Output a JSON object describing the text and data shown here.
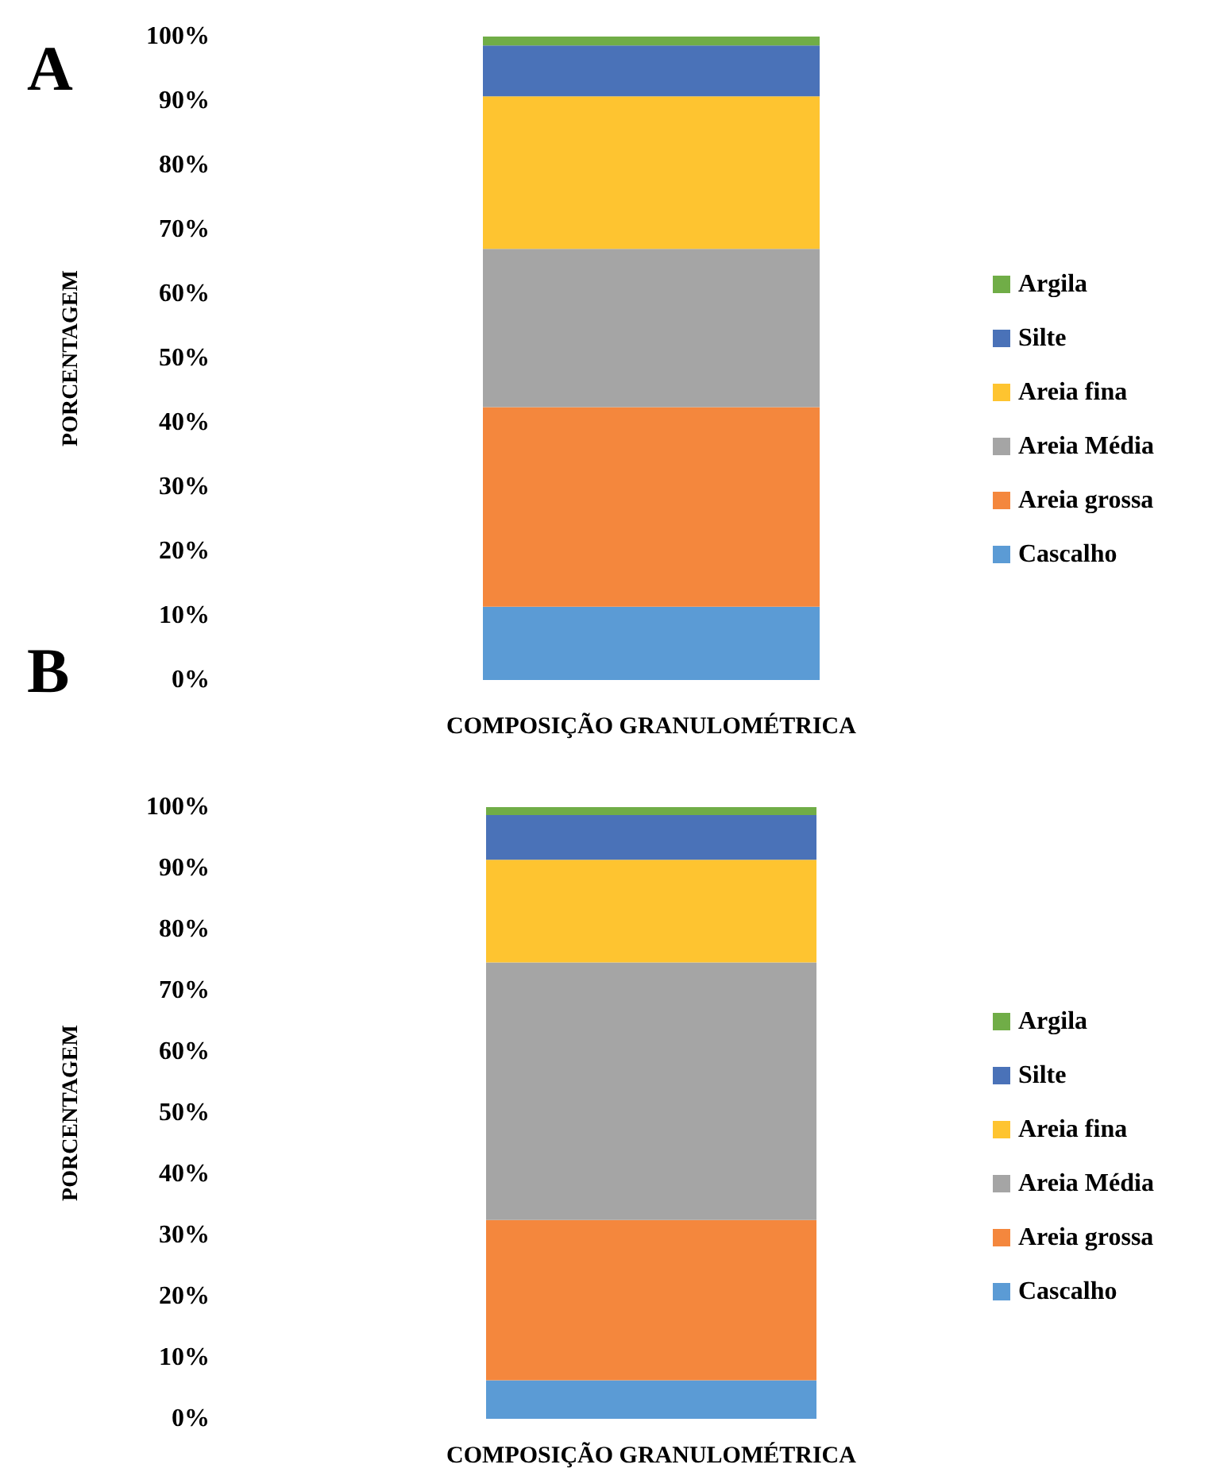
{
  "chart_data": [
    {
      "type": "bar",
      "title": "A",
      "xlabel": "COMPOSIÇÃO GRANULOMÉTRICA",
      "ylabel": "PORCENTAGEM",
      "categories": [
        null
      ],
      "stacked": true,
      "legend": "right",
      "ylim": [
        0,
        100
      ],
      "yticks": [
        {
          "value": 0,
          "label": "0%"
        },
        {
          "value": 10,
          "label": "10%"
        },
        {
          "value": 20,
          "label": "20%"
        },
        {
          "value": 30,
          "label": "30%"
        },
        {
          "value": 40,
          "label": "40%"
        },
        {
          "value": 50,
          "label": "50%"
        },
        {
          "value": 60,
          "label": "60%"
        },
        {
          "value": 70,
          "label": "70%"
        },
        {
          "value": 80,
          "label": "80%"
        },
        {
          "value": 90,
          "label": "90%"
        },
        {
          "value": 100,
          "label": "100%"
        }
      ],
      "series": [
        {
          "name": "Cascalho",
          "color": "#5b9bd5",
          "values": [
            11.4
          ]
        },
        {
          "name": "Areia grossa",
          "color": "#f4873d",
          "values": [
            31.0
          ]
        },
        {
          "name": "Areia Média",
          "color": "#a5a5a5",
          "values": [
            24.6
          ]
        },
        {
          "name": "Areia fina",
          "color": "#fec430",
          "values": [
            23.7
          ]
        },
        {
          "name": "Silte",
          "color": "#4a72b8",
          "values": [
            7.9
          ]
        },
        {
          "name": "Argila",
          "color": "#70ad47",
          "values": [
            1.4
          ]
        }
      ]
    },
    {
      "type": "bar",
      "title": "B",
      "xlabel": "COMPOSIÇÃO GRANULOMÉTRICA",
      "ylabel": "PORCENTAGEM",
      "categories": [
        null
      ],
      "stacked": true,
      "legend": "right",
      "ylim": [
        0,
        100
      ],
      "yticks": [
        {
          "value": 0,
          "label": "0%"
        },
        {
          "value": 10,
          "label": "10%"
        },
        {
          "value": 20,
          "label": "20%"
        },
        {
          "value": 30,
          "label": "30%"
        },
        {
          "value": 40,
          "label": "40%"
        },
        {
          "value": 50,
          "label": "50%"
        },
        {
          "value": 60,
          "label": "60%"
        },
        {
          "value": 70,
          "label": "70%"
        },
        {
          "value": 80,
          "label": "80%"
        },
        {
          "value": 90,
          "label": "90%"
        },
        {
          "value": 100,
          "label": "100%"
        }
      ],
      "series": [
        {
          "name": "Cascalho",
          "color": "#5b9bd5",
          "values": [
            6.3
          ]
        },
        {
          "name": "Areia grossa",
          "color": "#f4873d",
          "values": [
            26.2
          ]
        },
        {
          "name": "Areia Média",
          "color": "#a5a5a5",
          "values": [
            42.1
          ]
        },
        {
          "name": "Areia fina",
          "color": "#fec430",
          "values": [
            16.8
          ]
        },
        {
          "name": "Silte",
          "color": "#4a72b8",
          "values": [
            7.3
          ]
        },
        {
          "name": "Argila",
          "color": "#70ad47",
          "values": [
            1.3
          ]
        }
      ]
    }
  ]
}
